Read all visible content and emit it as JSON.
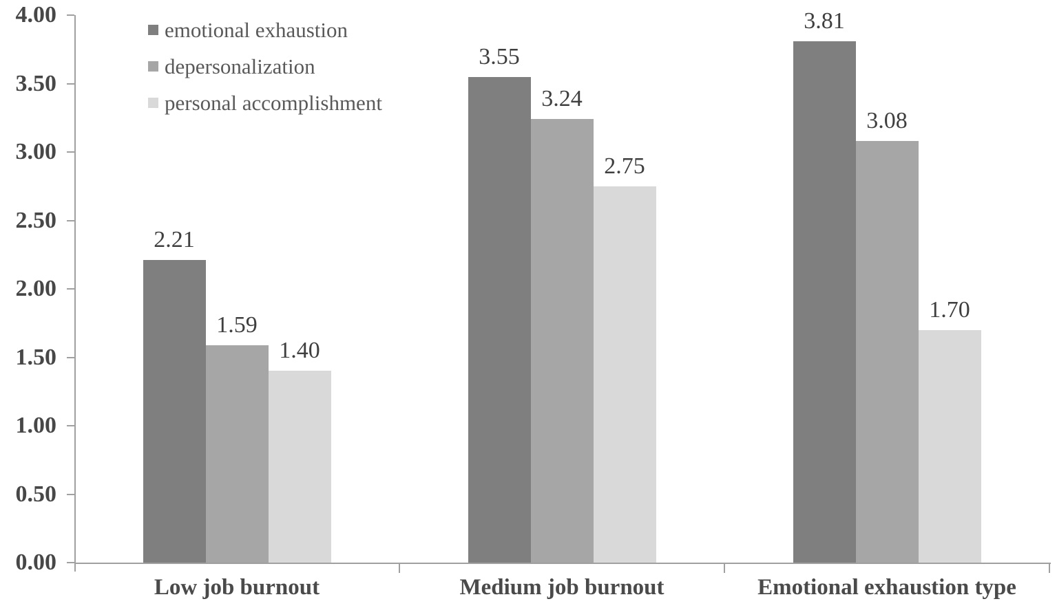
{
  "chart_data": {
    "type": "bar",
    "categories": [
      "Low job burnout",
      "Medium job burnout",
      "Emotional exhaustion type"
    ],
    "series": [
      {
        "name": "emotional exhaustion",
        "color": "#7f7f7f",
        "values": [
          2.21,
          3.55,
          3.81
        ],
        "labels": [
          "2.21",
          "3.55",
          "3.81"
        ]
      },
      {
        "name": "depersonalization",
        "color": "#a6a6a6",
        "values": [
          1.59,
          3.24,
          3.08
        ],
        "labels": [
          "1.59",
          "3.24",
          "3.08"
        ]
      },
      {
        "name": "personal accomplishment",
        "color": "#d9d9d9",
        "values": [
          1.4,
          2.75,
          1.7
        ],
        "labels": [
          "1.40",
          "2.75",
          "1.70"
        ]
      }
    ],
    "title": "",
    "xlabel": "",
    "ylabel": "",
    "ylim": [
      0,
      4
    ],
    "ytick_step": 0.5,
    "ytick_labels": [
      "0.00",
      "0.50",
      "1.00",
      "1.50",
      "2.00",
      "2.50",
      "3.00",
      "3.50",
      "4.00"
    ],
    "grid": false,
    "legend_position": "top-left",
    "colors": {
      "axis": "#a0a0a0",
      "tick_label": "#474747",
      "value_label": "#3f3f3f",
      "category_label": "#4a4a4a",
      "legend_text": "#595959",
      "background": "#ffffff"
    }
  }
}
